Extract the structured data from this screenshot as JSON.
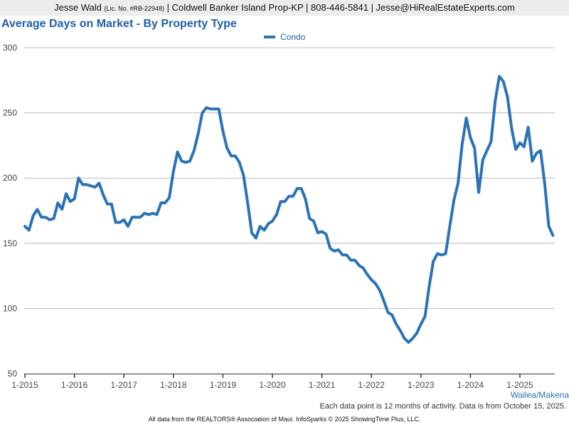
{
  "header": {
    "agent_name": "Jesse Wald",
    "license": "(Lic. No. #RB-22948)",
    "details": "| Coldwell Banker Island Prop-KP | 808-446-5841 | Jesse@HiRealEstateExperts.com"
  },
  "region_label": "Wailea/Makena",
  "note": "Each data point is 12 months of activity. Data is from October 15, 2025.",
  "footer": "All data from the REALTORS® Association of Maui. InfoSparks © 2025 ShowingTime Plus, LLC.",
  "colors": {
    "series": "#2a73b8",
    "title": "#1f5fa8",
    "grid": "#bbbbbb",
    "axis": "#333333",
    "header_bg": "#ececec"
  },
  "chart_data": {
    "type": "line",
    "title": "Average Days on Market - By Property Type",
    "ylim": [
      50,
      300
    ],
    "y_ticks": [
      50,
      100,
      150,
      200,
      250,
      300
    ],
    "x_ticks": [
      "1-2015",
      "1-2016",
      "1-2017",
      "1-2018",
      "1-2019",
      "1-2020",
      "1-2021",
      "1-2022",
      "1-2023",
      "1-2024",
      "1-2025"
    ],
    "x_start": "1-2015",
    "grid": true,
    "legend_position": "top-center",
    "series": [
      {
        "name": "Condo",
        "values": [
          163,
          160,
          171,
          176,
          170,
          170,
          168,
          169,
          181,
          176,
          188,
          182,
          184,
          200,
          195,
          195,
          194,
          193,
          196,
          187,
          180,
          180,
          166,
          166,
          168,
          163,
          170,
          170,
          170,
          173,
          172,
          173,
          172,
          181,
          181,
          185,
          205,
          220,
          213,
          212,
          213,
          221,
          234,
          250,
          254,
          253,
          253,
          253,
          236,
          223,
          217,
          217,
          212,
          202,
          181,
          158,
          154,
          163,
          160,
          165,
          167,
          172,
          182,
          182,
          186,
          186,
          192,
          192,
          184,
          169,
          167,
          158,
          159,
          157,
          146,
          144,
          145,
          141,
          141,
          137,
          137,
          133,
          131,
          126,
          122,
          119,
          114,
          106,
          97,
          95,
          88,
          83,
          77,
          74,
          77,
          81,
          88,
          94,
          117,
          136,
          142,
          141,
          142,
          163,
          183,
          196,
          226,
          246,
          231,
          223,
          189,
          214,
          221,
          228,
          259,
          278,
          274,
          262,
          238,
          222,
          227,
          224,
          239,
          213,
          219,
          221,
          196,
          163,
          156
        ]
      }
    ]
  }
}
